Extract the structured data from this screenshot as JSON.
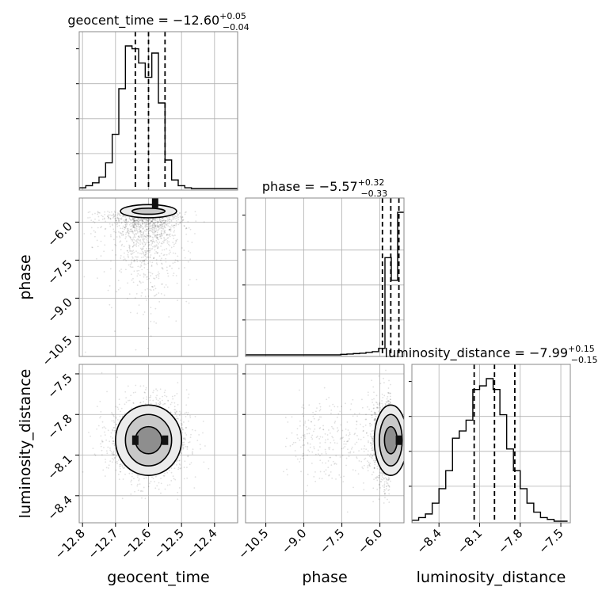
{
  "chart_data": {
    "type": "corner",
    "parameters": [
      {
        "name": "geocent_time",
        "axis_label": "geocent_time",
        "title": {
          "main": "geocent_time = −12.60",
          "sup": "+0.05",
          "sub": "−0.04"
        },
        "median": -12.6,
        "quantiles": [
          -12.64,
          -12.6,
          -12.55
        ],
        "range": [
          -12.81,
          -12.33
        ],
        "ticks": [
          -12.8,
          -12.7,
          -12.6,
          -12.5,
          -12.4
        ],
        "tick_labels": [
          "−12.8",
          "−12.7",
          "−12.6",
          "−12.5",
          "−12.4"
        ],
        "histogram": {
          "edges": [
            -12.81,
            -12.79,
            -12.77,
            -12.75,
            -12.73,
            -12.71,
            -12.69,
            -12.67,
            -12.65,
            -12.63,
            -12.61,
            -12.59,
            -12.57,
            -12.55,
            -12.53,
            -12.51,
            -12.49,
            -12.47,
            -12.45,
            -12.43,
            -12.41,
            -12.39,
            -12.37,
            -12.35,
            -12.33
          ],
          "counts": [
            0.5,
            2,
            4,
            8,
            18,
            38,
            70,
            100,
            98,
            88,
            78,
            95,
            60,
            20,
            6,
            2,
            0.5,
            0,
            0,
            0,
            0,
            0,
            0,
            0
          ]
        }
      },
      {
        "name": "phase",
        "axis_label": "phase",
        "title": {
          "main": "phase = −5.57",
          "sup": "+0.32",
          "sub": "−0.33"
        },
        "median": -5.57,
        "quantiles": [
          -5.9,
          -5.57,
          -5.25
        ],
        "range": [
          -11.3,
          -5.05
        ],
        "ticks": [
          -10.5,
          -9.0,
          -7.5,
          -6.0
        ],
        "tick_labels": [
          "−10.5",
          "−9.0",
          "−7.5",
          "−6.0"
        ],
        "histogram": {
          "edges": [
            -11.3,
            -11.05,
            -10.8,
            -10.55,
            -10.3,
            -10.05,
            -9.8,
            -9.55,
            -9.3,
            -9.05,
            -8.8,
            -8.55,
            -8.3,
            -8.05,
            -7.8,
            -7.55,
            -7.3,
            -7.05,
            -6.8,
            -6.55,
            -6.3,
            -6.05,
            -5.8,
            -5.55,
            -5.3,
            -5.05
          ],
          "counts": [
            0,
            0,
            0,
            0,
            0,
            0,
            0,
            0,
            0,
            0,
            0,
            0,
            0,
            0,
            0,
            0.3,
            0.5,
            0.8,
            1,
            1.5,
            2,
            4,
            60,
            46,
            88
          ]
        }
      },
      {
        "name": "luminosity_distance",
        "axis_label": "luminosity_distance",
        "title": {
          "main": "luminosity_distance = −7.99",
          "sup": "+0.15",
          "sub": "−0.15"
        },
        "median": -7.99,
        "quantiles": [
          -8.14,
          -7.99,
          -7.84
        ],
        "range": [
          -8.6,
          -7.43
        ],
        "ticks": [
          -8.4,
          -8.1,
          -7.8,
          -7.5
        ],
        "tick_labels": [
          "−8.4",
          "−8.1",
          "−7.8",
          "−7.5"
        ],
        "histogram": {
          "edges": [
            -8.6,
            -8.55,
            -8.5,
            -8.45,
            -8.4,
            -8.35,
            -8.3,
            -8.25,
            -8.2,
            -8.15,
            -8.1,
            -8.05,
            -8.0,
            -7.95,
            -7.9,
            -7.85,
            -7.8,
            -7.75,
            -7.7,
            -7.65,
            -7.6,
            -7.55,
            -7.5,
            -7.45
          ],
          "counts": [
            0.5,
            2,
            4,
            10,
            18,
            28,
            46,
            50,
            56,
            73,
            75,
            79,
            73,
            59,
            40,
            28,
            18,
            10,
            5,
            2,
            1,
            0,
            0
          ]
        }
      }
    ],
    "pairs": [
      {
        "x": "geocent_time",
        "y": "phase",
        "y_range": [
          -11.3,
          -5.05
        ],
        "y_ticks": [
          -10.5,
          -9.0,
          -7.5,
          -6.0
        ],
        "y_tick_labels": [
          "−10.5",
          "−9.0",
          "−7.5",
          "−6.0"
        ],
        "center": [
          -12.6,
          -5.57
        ],
        "contours_sigma": [
          [
            0.05,
            0.12
          ],
          [
            0.085,
            0.26
          ]
        ],
        "peaks": [
          [
            -12.58,
            -5.25
          ]
        ]
      },
      {
        "x": "geocent_time",
        "y": "luminosity_distance",
        "y_range": [
          -8.6,
          -7.43
        ],
        "y_ticks": [
          -8.4,
          -8.1,
          -7.8,
          -7.5
        ],
        "y_tick_labels": [
          "−8.4",
          "−8.1",
          "−7.8",
          "−7.5"
        ],
        "center": [
          -12.6,
          -7.99
        ],
        "contours_sigma": [
          [
            0.04,
            0.1
          ],
          [
            0.07,
            0.19
          ],
          [
            0.1,
            0.26
          ]
        ],
        "peaks": [
          [
            -12.64,
            -7.99
          ],
          [
            -12.55,
            -7.99
          ]
        ]
      },
      {
        "x": "phase",
        "y": "luminosity_distance",
        "center": [
          -5.57,
          -7.99
        ],
        "contours_sigma": [
          [
            0.25,
            0.1
          ],
          [
            0.45,
            0.19
          ],
          [
            0.65,
            0.26
          ]
        ],
        "peaks": [
          [
            -5.25,
            -7.99
          ]
        ]
      }
    ],
    "grid": true,
    "xlabel": [
      "geocent_time",
      "phase",
      "luminosity_distance"
    ],
    "ylabel": [
      "phase",
      "luminosity_distance"
    ],
    "colors": {
      "lines": "#000000",
      "grid": "#b0b0b0",
      "frame": "#888888",
      "scatter": "#000000"
    }
  }
}
